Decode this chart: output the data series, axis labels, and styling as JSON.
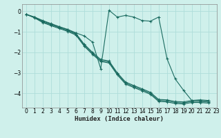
{
  "xlabel": "Humidex (Indice chaleur)",
  "background_color": "#cff0eb",
  "grid_color": "#aeddda",
  "line_color": "#1a6b60",
  "xlim": [
    -0.5,
    23
  ],
  "ylim": [
    -4.7,
    0.35
  ],
  "xticks": [
    0,
    1,
    2,
    3,
    4,
    5,
    6,
    7,
    8,
    9,
    10,
    11,
    12,
    13,
    14,
    15,
    16,
    17,
    18,
    19,
    20,
    21,
    22,
    23
  ],
  "yticks": [
    0,
    -1,
    -2,
    -3,
    -4
  ],
  "series": [
    {
      "x": [
        0,
        1,
        2,
        3,
        4,
        5,
        6,
        7,
        8,
        9,
        10,
        11,
        12,
        13,
        14,
        15,
        16,
        17,
        18,
        19,
        20,
        21,
        22
      ],
      "y": [
        -0.15,
        -0.28,
        -0.45,
        -0.6,
        -0.75,
        -0.88,
        -1.05,
        -1.2,
        -1.5,
        -2.8,
        0.05,
        -0.28,
        -0.2,
        -0.28,
        -0.45,
        -0.48,
        -0.28,
        -2.3,
        -3.3,
        -3.85,
        -4.35,
        -4.32,
        -4.35
      ]
    },
    {
      "x": [
        0,
        1,
        2,
        3,
        4,
        5,
        6,
        7,
        8,
        9,
        10,
        11,
        12,
        13,
        14,
        15,
        16,
        17,
        18,
        19,
        20,
        21,
        22
      ],
      "y": [
        -0.15,
        -0.28,
        -0.48,
        -0.62,
        -0.76,
        -0.9,
        -1.08,
        -1.6,
        -2.0,
        -2.35,
        -2.42,
        -3.0,
        -3.45,
        -3.62,
        -3.78,
        -3.95,
        -4.3,
        -4.32,
        -4.4,
        -4.42,
        -4.35,
        -4.35,
        -4.38
      ]
    },
    {
      "x": [
        0,
        1,
        2,
        3,
        4,
        5,
        6,
        7,
        8,
        9,
        10,
        11,
        12,
        13,
        14,
        15,
        16,
        17,
        18,
        19,
        20,
        21,
        22
      ],
      "y": [
        -0.15,
        -0.3,
        -0.52,
        -0.66,
        -0.8,
        -0.94,
        -1.12,
        -1.65,
        -2.05,
        -2.4,
        -2.47,
        -3.05,
        -3.5,
        -3.67,
        -3.83,
        -4.0,
        -4.35,
        -4.37,
        -4.45,
        -4.47,
        -4.4,
        -4.4,
        -4.43
      ]
    },
    {
      "x": [
        0,
        1,
        2,
        3,
        4,
        5,
        6,
        7,
        8,
        9,
        10,
        11,
        12,
        13,
        14,
        15,
        16,
        17,
        18,
        19,
        20,
        21,
        22
      ],
      "y": [
        -0.15,
        -0.32,
        -0.55,
        -0.7,
        -0.84,
        -0.98,
        -1.16,
        -1.7,
        -2.1,
        -2.45,
        -2.52,
        -3.1,
        -3.55,
        -3.72,
        -3.88,
        -4.05,
        -4.4,
        -4.42,
        -4.5,
        -4.52,
        -4.45,
        -4.45,
        -4.48
      ]
    }
  ]
}
